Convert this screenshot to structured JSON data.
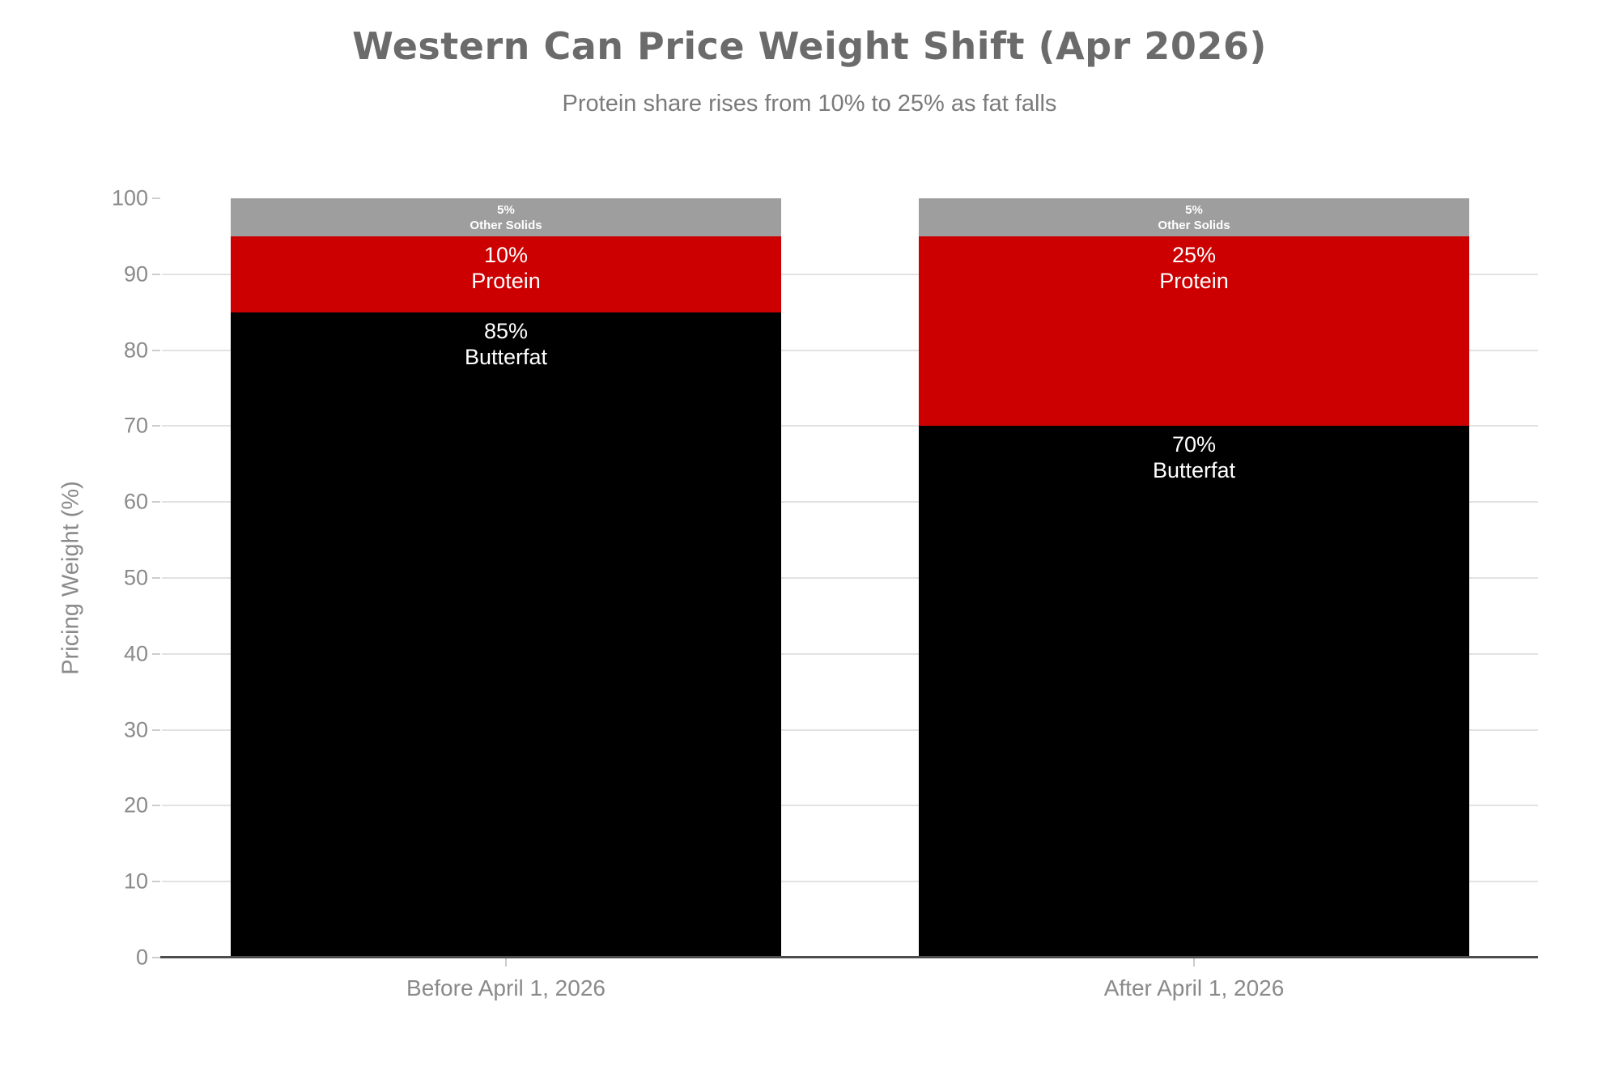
{
  "chart_data": {
    "type": "bar",
    "stacked": true,
    "title": "Western Can Price Weight Shift (Apr 2026)",
    "subtitle": "Protein share rises from 10% to 25% as fat falls",
    "ylabel": "Pricing Weight (%)",
    "xlabel": "",
    "ylim": [
      0,
      100
    ],
    "yticks": [
      0,
      10,
      20,
      30,
      40,
      50,
      60,
      70,
      80,
      90,
      100
    ],
    "categories": [
      "Before April 1, 2026",
      "After April 1, 2026"
    ],
    "series": [
      {
        "name": "Butterfat",
        "color": "#000000",
        "values": [
          85,
          70
        ]
      },
      {
        "name": "Protein",
        "color": "#CC0000",
        "values": [
          10,
          25
        ]
      },
      {
        "name": "Other Solids",
        "color": "#9E9E9E",
        "values": [
          5,
          5
        ]
      }
    ],
    "segment_labels": [
      [
        "85%",
        "10%",
        "5%"
      ],
      [
        "70%",
        "25%",
        "5%"
      ]
    ],
    "legend": "none (labels inside segments)",
    "grid": "horizontal gridlines at 10-90 only; dark baseline at 0"
  },
  "colors": {
    "background": "#FFFFFF",
    "title": "#6B6B6B",
    "subtitle": "#7B7B7B",
    "axis_text": "#8A8A8A",
    "gridline": "#E2E2E2",
    "tick": "#CCCCCC",
    "axis_line": "#4D4D4D",
    "segment_label_text": "#FFFFFF"
  }
}
